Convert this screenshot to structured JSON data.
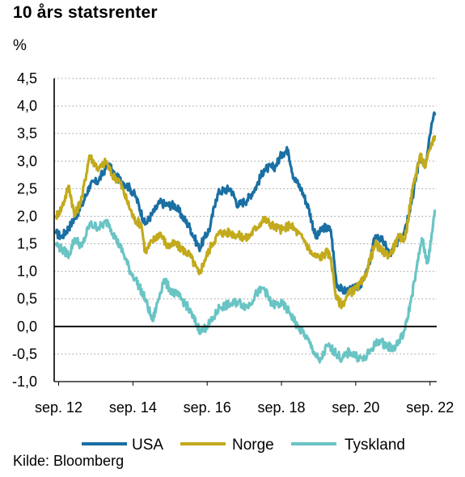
{
  "chart_data": {
    "type": "line",
    "title": "10 års statsrenter",
    "ylabel": "%",
    "source": "Kilde: Bloomberg",
    "ylim": [
      -1.0,
      4.5
    ],
    "yticks": [
      "4,5",
      "4,0",
      "3,5",
      "3,0",
      "2,5",
      "2,0",
      "1,5",
      "1,0",
      "0,5",
      "0,0",
      "-0,5",
      "-1,0"
    ],
    "ytick_values": [
      4.5,
      4.0,
      3.5,
      3.0,
      2.5,
      2.0,
      1.5,
      1.0,
      0.5,
      0.0,
      -0.5,
      -1.0
    ],
    "xlim": [
      2012.55,
      2022.85
    ],
    "xticks": [
      "sep. 12",
      "sep. 14",
      "sep. 16",
      "sep. 18",
      "sep. 20",
      "sep. 22"
    ],
    "xtick_values": [
      2012.67,
      2014.67,
      2016.67,
      2018.67,
      2020.67,
      2022.67
    ],
    "grid": "horizontal-dotted",
    "legend_position": "bottom",
    "series": [
      {
        "name": "USA",
        "color": "#1a6fa3",
        "x": [
          2012.6,
          2012.75,
          2013.0,
          2013.3,
          2013.5,
          2013.75,
          2014.0,
          2014.2,
          2014.4,
          2014.6,
          2014.75,
          2015.0,
          2015.2,
          2015.4,
          2015.6,
          2015.8,
          2016.0,
          2016.2,
          2016.45,
          2016.6,
          2016.75,
          2016.9,
          2017.0,
          2017.3,
          2017.5,
          2017.75,
          2018.0,
          2018.2,
          2018.5,
          2018.7,
          2018.85,
          2019.0,
          2019.2,
          2019.4,
          2019.6,
          2019.8,
          2020.0,
          2020.15,
          2020.3,
          2020.5,
          2020.7,
          2020.9,
          2021.0,
          2021.2,
          2021.4,
          2021.6,
          2021.8,
          2022.0,
          2022.2,
          2022.4,
          2022.55,
          2022.7,
          2022.8
        ],
        "y": [
          1.7,
          1.62,
          1.85,
          2.2,
          2.55,
          2.65,
          2.95,
          2.72,
          2.62,
          2.5,
          2.35,
          1.85,
          2.05,
          2.25,
          2.2,
          2.2,
          2.0,
          1.8,
          1.42,
          1.6,
          1.8,
          2.3,
          2.45,
          2.5,
          2.2,
          2.3,
          2.55,
          2.85,
          2.9,
          3.15,
          3.2,
          2.7,
          2.5,
          2.15,
          1.6,
          1.8,
          1.75,
          0.8,
          0.65,
          0.65,
          0.7,
          0.85,
          1.05,
          1.65,
          1.55,
          1.3,
          1.55,
          1.8,
          2.35,
          3.1,
          2.9,
          3.6,
          3.85
        ]
      },
      {
        "name": "Norge",
        "color": "#c2aa1c",
        "x": [
          2012.6,
          2012.75,
          2012.95,
          2013.1,
          2013.3,
          2013.5,
          2013.75,
          2013.95,
          2014.1,
          2014.3,
          2014.5,
          2014.7,
          2014.9,
          2015.0,
          2015.2,
          2015.4,
          2015.6,
          2015.8,
          2016.0,
          2016.2,
          2016.45,
          2016.6,
          2016.8,
          2017.0,
          2017.3,
          2017.5,
          2017.75,
          2018.0,
          2018.2,
          2018.5,
          2018.7,
          2018.9,
          2019.1,
          2019.3,
          2019.5,
          2019.7,
          2019.9,
          2020.0,
          2020.15,
          2020.3,
          2020.5,
          2020.7,
          2020.9,
          2021.0,
          2021.2,
          2021.4,
          2021.6,
          2021.8,
          2022.0,
          2022.2,
          2022.4,
          2022.55,
          2022.7,
          2022.8
        ],
        "y": [
          2.0,
          2.15,
          2.55,
          2.0,
          2.35,
          3.1,
          2.85,
          3.0,
          2.75,
          2.65,
          2.3,
          1.95,
          1.85,
          1.35,
          1.55,
          1.7,
          1.45,
          1.5,
          1.4,
          1.3,
          0.95,
          1.2,
          1.5,
          1.7,
          1.7,
          1.65,
          1.6,
          1.8,
          1.95,
          1.8,
          1.75,
          1.85,
          1.7,
          1.55,
          1.3,
          1.25,
          1.35,
          1.25,
          0.5,
          0.4,
          0.6,
          0.7,
          0.85,
          1.1,
          1.5,
          1.35,
          1.3,
          1.6,
          1.6,
          2.5,
          3.1,
          2.9,
          3.3,
          3.45
        ]
      },
      {
        "name": "Tyskland",
        "color": "#6ac4c4",
        "x": [
          2012.6,
          2012.75,
          2012.95,
          2013.1,
          2013.3,
          2013.5,
          2013.75,
          2014.0,
          2014.2,
          2014.4,
          2014.6,
          2014.75,
          2015.0,
          2015.2,
          2015.4,
          2015.5,
          2015.7,
          2015.9,
          2016.1,
          2016.3,
          2016.5,
          2016.65,
          2016.8,
          2017.0,
          2017.3,
          2017.5,
          2017.75,
          2018.0,
          2018.2,
          2018.4,
          2018.7,
          2018.9,
          2019.1,
          2019.3,
          2019.5,
          2019.7,
          2019.9,
          2020.1,
          2020.3,
          2020.5,
          2020.7,
          2020.9,
          2021.1,
          2021.3,
          2021.5,
          2021.7,
          2021.9,
          2022.0,
          2022.15,
          2022.3,
          2022.45,
          2022.6,
          2022.7,
          2022.8
        ],
        "y": [
          1.5,
          1.4,
          1.3,
          1.6,
          1.45,
          1.85,
          1.8,
          1.9,
          1.6,
          1.35,
          1.0,
          0.85,
          0.5,
          0.1,
          0.6,
          0.85,
          0.65,
          0.55,
          0.4,
          0.15,
          -0.1,
          0.0,
          0.1,
          0.35,
          0.4,
          0.45,
          0.35,
          0.6,
          0.7,
          0.4,
          0.4,
          0.25,
          0.0,
          -0.15,
          -0.4,
          -0.65,
          -0.35,
          -0.45,
          -0.6,
          -0.45,
          -0.55,
          -0.6,
          -0.4,
          -0.25,
          -0.35,
          -0.4,
          -0.2,
          -0.05,
          0.45,
          1.0,
          1.6,
          1.15,
          1.55,
          2.1
        ]
      }
    ]
  }
}
